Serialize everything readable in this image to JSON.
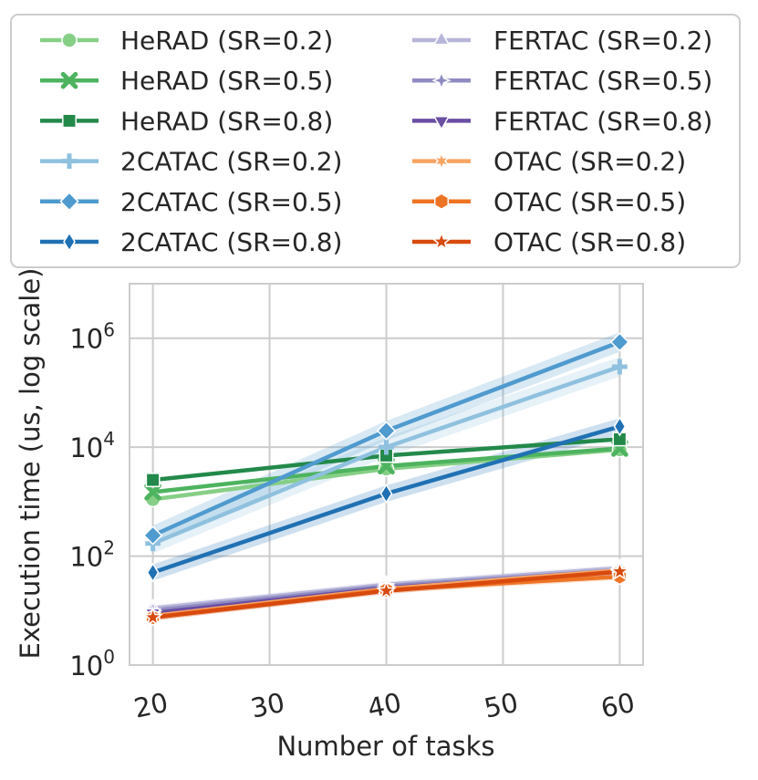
{
  "chart_data": {
    "type": "line",
    "title": "",
    "xlabel": "Number of tasks",
    "ylabel": "Execution time (us, log scale)",
    "yscale": "log",
    "xlim": [
      18,
      62
    ],
    "ylim": [
      1,
      10000000
    ],
    "grid": true,
    "legend_position": "top",
    "legend_columns": 2,
    "x_ticks": [
      20,
      30,
      40,
      50,
      60
    ],
    "x_tick_labels": [
      "20",
      "30",
      "40",
      "50",
      "60"
    ],
    "y_ticks": [
      {
        "value": 1,
        "base": "10",
        "exp": "0"
      },
      {
        "value": 100,
        "base": "10",
        "exp": "2"
      },
      {
        "value": 10000,
        "base": "10",
        "exp": "4"
      },
      {
        "value": 1000000,
        "base": "10",
        "exp": "6"
      }
    ],
    "x": [
      20,
      40,
      60
    ],
    "series": [
      {
        "name": "HeRAD (SR=0.2)",
        "color": "#86cf86",
        "marker": "circle",
        "values": [
          1100,
          4000,
          9000
        ],
        "band": 0
      },
      {
        "name": "HeRAD (SR=0.5)",
        "color": "#4db35f",
        "marker": "x",
        "values": [
          1500,
          4500,
          9500
        ],
        "band": 0
      },
      {
        "name": "HeRAD (SR=0.8)",
        "color": "#23894a",
        "marker": "square",
        "values": [
          2500,
          7000,
          14000
        ],
        "band": 0
      },
      {
        "name": "2CATAC (SR=0.2)",
        "color": "#8fc1df",
        "marker": "plus",
        "values": [
          170,
          10000,
          300000
        ],
        "band": 0.18
      },
      {
        "name": "2CATAC (SR=0.5)",
        "color": "#4f9ace",
        "marker": "diamond",
        "values": [
          240,
          20000,
          850000
        ],
        "band": 0.18
      },
      {
        "name": "2CATAC (SR=0.8)",
        "color": "#2071b4",
        "marker": "thin_diamond",
        "values": [
          50,
          1400,
          24000
        ],
        "band": 0.15
      },
      {
        "name": "FERTAC (SR=0.2)",
        "color": "#b7b5d9",
        "marker": "triangle_up",
        "values": [
          11,
          30,
          60
        ],
        "band": 0.06
      },
      {
        "name": "FERTAC (SR=0.5)",
        "color": "#8f8bc2",
        "marker": "star4",
        "values": [
          10,
          28,
          55
        ],
        "band": 0.06
      },
      {
        "name": "FERTAC (SR=0.8)",
        "color": "#6a4ea3",
        "marker": "triangle_down",
        "values": [
          9,
          26,
          52
        ],
        "band": 0.06
      },
      {
        "name": "OTAC (SR=0.2)",
        "color": "#f9a463",
        "marker": "star6",
        "values": [
          8,
          25,
          55
        ],
        "band": 0.06
      },
      {
        "name": "OTAC (SR=0.5)",
        "color": "#ee7425",
        "marker": "hexagon",
        "values": [
          7.5,
          24,
          42
        ],
        "band": 0.06
      },
      {
        "name": "OTAC (SR=0.8)",
        "color": "#d84a0d",
        "marker": "star5",
        "values": [
          7.5,
          23,
          52
        ],
        "band": 0.06
      }
    ]
  }
}
